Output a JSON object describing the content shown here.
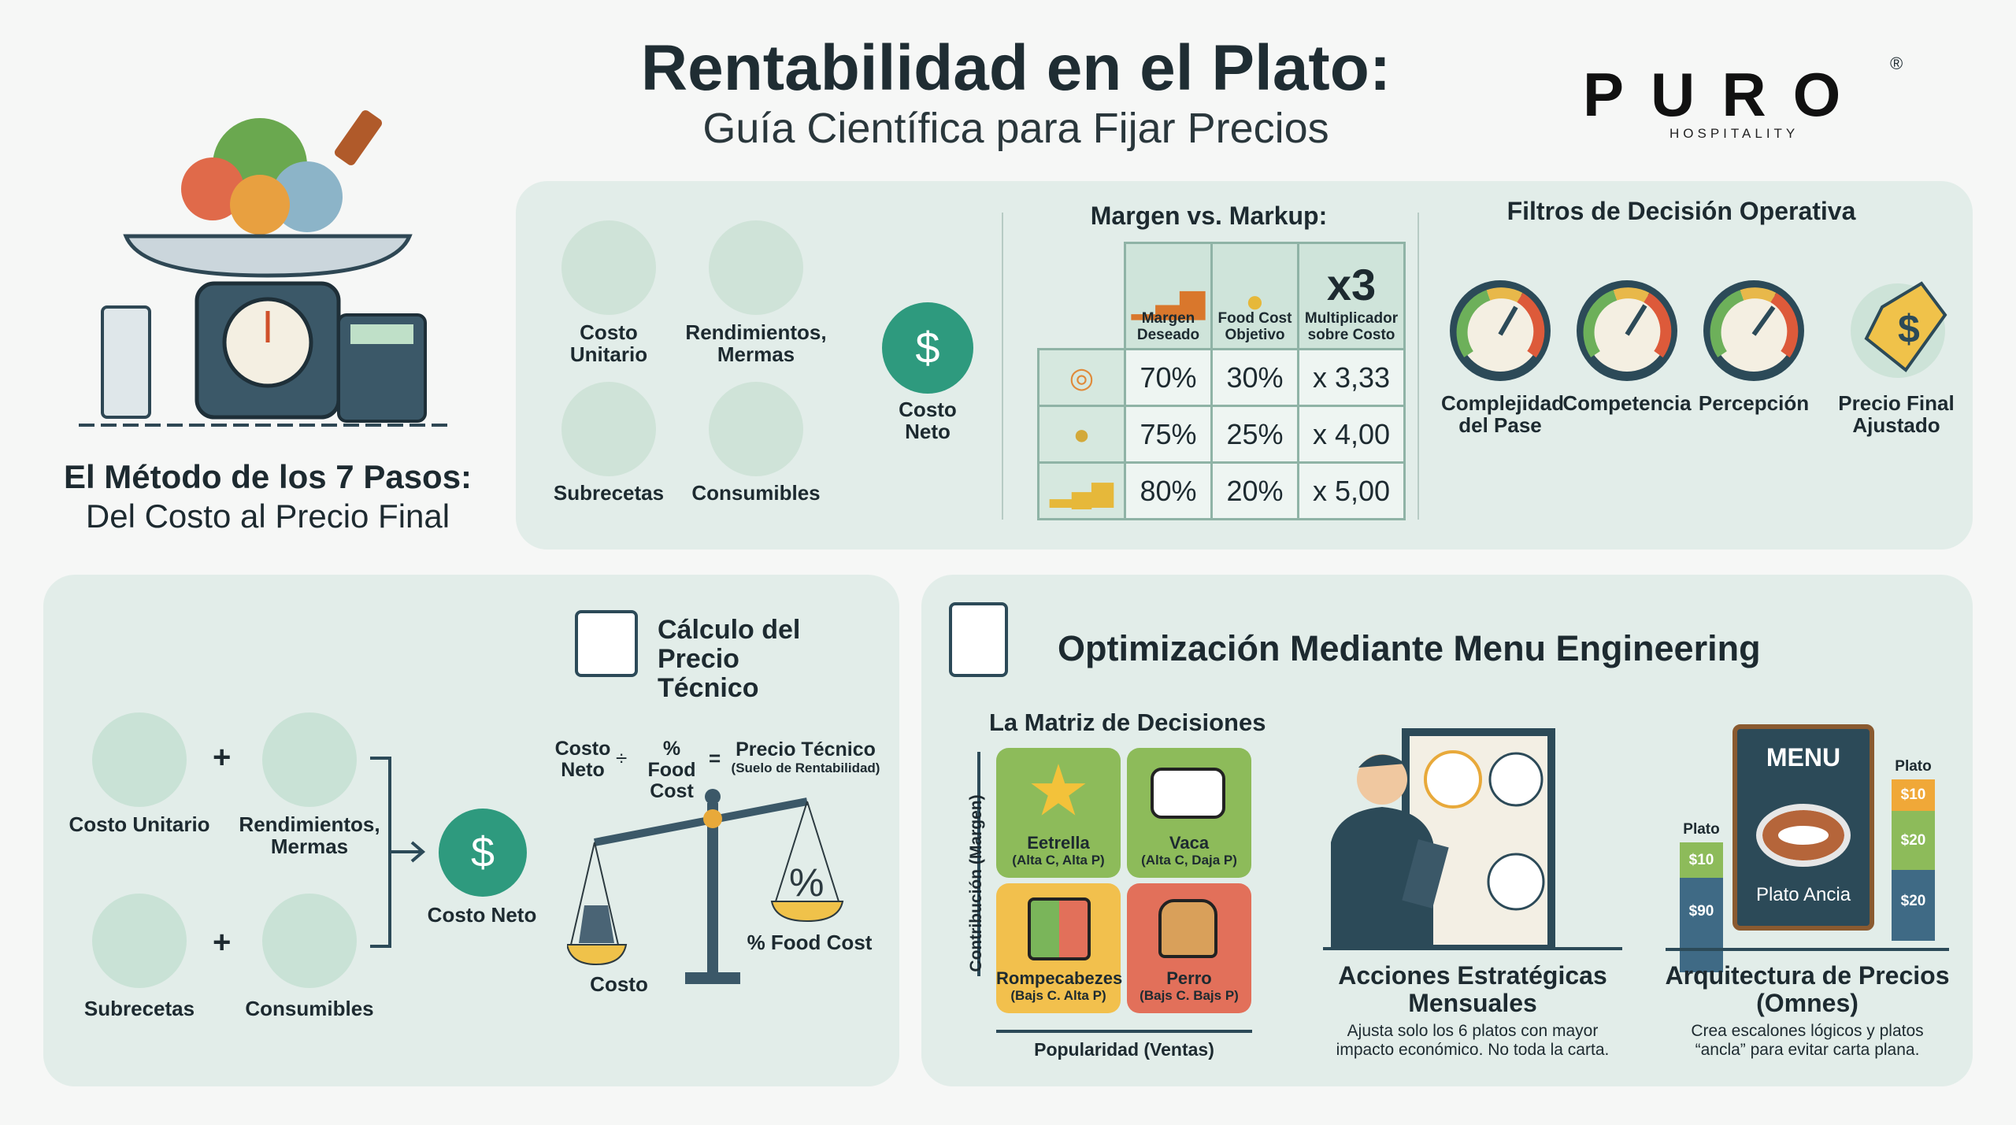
{
  "header": {
    "title": "Rentabilidad en el Plato:",
    "subtitle": "Guía Científica para Fijar Precios"
  },
  "logo": {
    "name": "PURO",
    "tagline": "HOSPITALITY",
    "mark": "®"
  },
  "intro": {
    "title": "El Método de los 7 Pasos:",
    "subtitle": "Del Costo al Precio Final"
  },
  "ingredients": {
    "costo_unitario": "Costo Unitario",
    "rendimientos": "Rendimientos, Mermas",
    "subrecetas": "Subrecetas",
    "consumibles": "Consumibles",
    "costo_neto": "Costo Neto"
  },
  "markup": {
    "title": "Margen vs. Markup:",
    "headers": [
      "Margen Deseado",
      "Food Cost Objetivo",
      "Multiplicador sobre Costo"
    ],
    "x3": "x3",
    "rows": [
      [
        "70%",
        "30%",
        "x 3,33"
      ],
      [
        "75%",
        "25%",
        "x 4,00"
      ],
      [
        "80%",
        "20%",
        "x 5,00"
      ]
    ]
  },
  "filters": {
    "title": "Filtros de Decisión Operativa",
    "items": [
      "Complejidad del Pase",
      "Competencia",
      "Percepción"
    ],
    "final": "Precio Final Ajustado"
  },
  "calc": {
    "title": "Cálculo del Precio Técnico",
    "costo_unitario": "Costo Unitario",
    "rendimientos": "Rendimientos, Mermas",
    "subrecetas": "Subrecetas",
    "consumibles": "Consumibles",
    "costo_neto": "Costo Neto",
    "formula": {
      "a": "Costo Neto",
      "div": "÷",
      "b": "% Food Cost",
      "eq": "=",
      "c": "Precio Técnico",
      "c_note": "(Suelo de Rentabilidad)"
    },
    "scale_left": "Costo",
    "scale_right": "% Food Cost"
  },
  "menu_eng": {
    "title": "Optimización Mediante Menu Engineering",
    "matrix_title": "La Matriz de Decisiones",
    "y_axis": "Contribución (Margen)",
    "x_axis": "Popularidad (Ventas)",
    "quadrants": [
      {
        "name": "Eetrella",
        "note": "(Alta C, Alta P)",
        "color": "#8dbb5a"
      },
      {
        "name": "Vaca",
        "note": "(Alta C, Daja P)",
        "color": "#8dbb5a"
      },
      {
        "name": "Rompecabezes",
        "note": "(Bajs C. Alta P)",
        "color": "#f2c04d"
      },
      {
        "name": "Perro",
        "note": "(Bajs C. Bajs P)",
        "color": "#e2705a"
      }
    ],
    "actions": {
      "title": "Acciones Estratégicas Mensuales",
      "desc": "Ajusta solo los 6 platos con mayor impacto económico. No toda la carta."
    },
    "architecture": {
      "title": "Arquitectura de Precios (Omnes)",
      "desc": "Crea escalones lógicos y platos “ancla” para evitar carta plana.",
      "menu": "MENU",
      "anchor": "Plato Ancia",
      "left_label": "Plato",
      "left_prices": [
        "$10",
        "$90"
      ],
      "right_label": "Plato",
      "right_prices": [
        "$10",
        "$20",
        "$20"
      ]
    }
  }
}
